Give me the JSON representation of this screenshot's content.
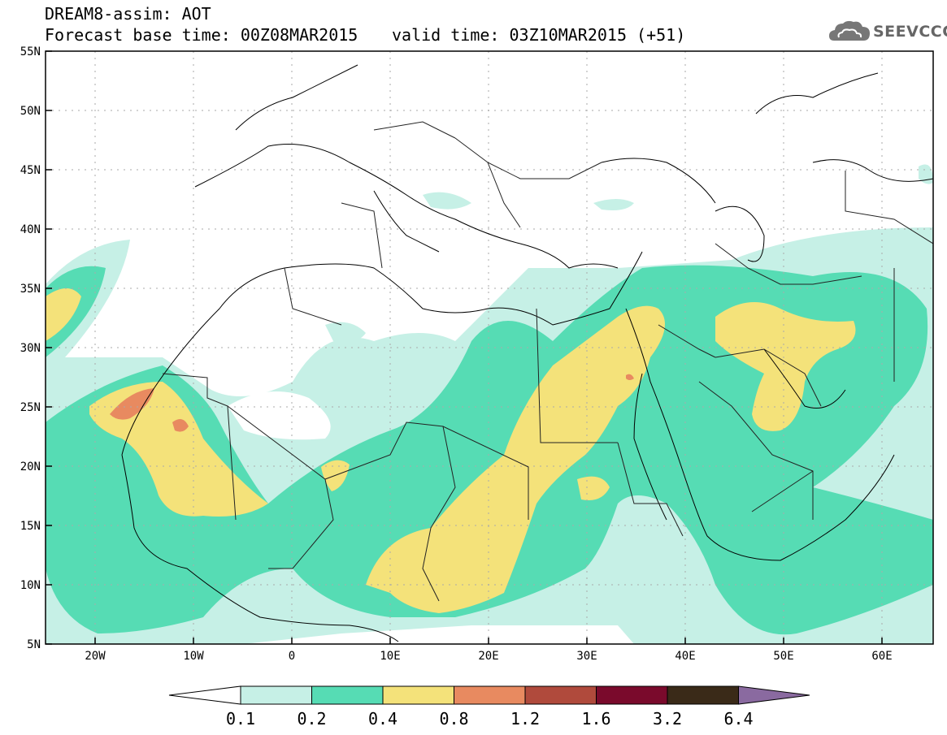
{
  "header": {
    "title": "DREAM8-assim: AOT",
    "base_time": "Forecast base time: 00Z08MAR2015",
    "valid_time": "valid time: 03Z10MAR2015 (+51)",
    "logo_text": "SEEVCCC",
    "logo_icon": "cloud-icon"
  },
  "map": {
    "lon_range": [
      -25,
      65
    ],
    "lat_range": [
      5,
      55
    ],
    "lat_ticks": [
      "55N",
      "50N",
      "45N",
      "40N",
      "35N",
      "30N",
      "25N",
      "20N",
      "15N",
      "10N",
      "5N"
    ],
    "lon_ticks": [
      "20W",
      "10W",
      "0",
      "10E",
      "20E",
      "30E",
      "40E",
      "50E",
      "60E"
    ],
    "grid": true
  },
  "colorbar": {
    "labels": [
      "0.1",
      "0.2",
      "0.4",
      "0.8",
      "1.2",
      "1.6",
      "3.2",
      "6.4"
    ],
    "colors": [
      "#ffffff",
      "#c6f0e6",
      "#56dcb4",
      "#f4e27a",
      "#e88a60",
      "#b04a3c",
      "#7a0a2c",
      "#3a2a18",
      "#8a6aa0"
    ]
  }
}
